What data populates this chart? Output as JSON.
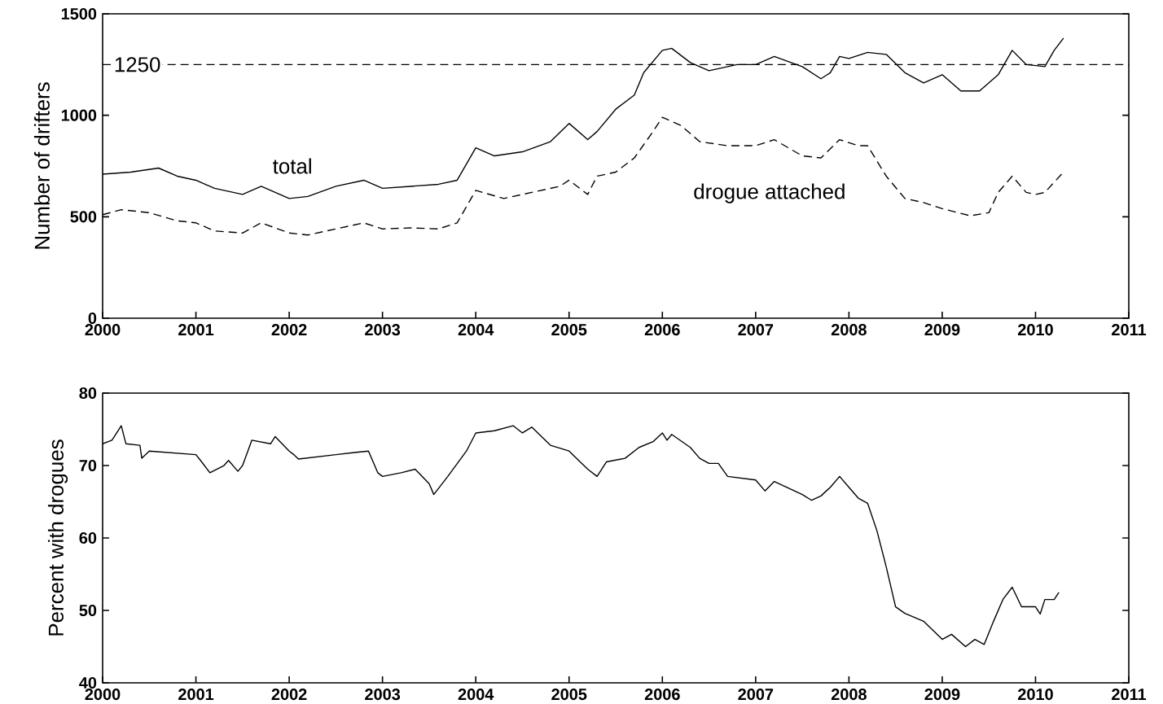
{
  "chart_data": [
    {
      "type": "line",
      "ylabel": "Number of drifters",
      "xlim": [
        2000,
        2011
      ],
      "xticks": [
        2000,
        2001,
        2002,
        2003,
        2004,
        2005,
        2006,
        2007,
        2008,
        2009,
        2010,
        2011
      ],
      "ylim": [
        0,
        1500
      ],
      "yticks": [
        0,
        500,
        1000,
        1500
      ],
      "grid": false,
      "legend": false,
      "marker": "none",
      "ref_lines": [
        {
          "axis": "y",
          "value": 1250,
          "label": "1250",
          "line_style": "dashed",
          "color": "#000000"
        }
      ],
      "series": [
        {
          "name": "total",
          "color": "#000000",
          "line_style": "solid",
          "x": [
            2000.0,
            2000.3,
            2000.6,
            2000.8,
            2001.0,
            2001.2,
            2001.5,
            2001.7,
            2002.0,
            2002.2,
            2002.5,
            2002.8,
            2003.0,
            2003.3,
            2003.6,
            2003.8,
            2004.0,
            2004.2,
            2004.5,
            2004.8,
            2005.0,
            2005.2,
            2005.3,
            2005.5,
            2005.7,
            2005.8,
            2006.0,
            2006.1,
            2006.3,
            2006.5,
            2006.8,
            2007.0,
            2007.2,
            2007.5,
            2007.7,
            2007.8,
            2007.9,
            2008.0,
            2008.2,
            2008.4,
            2008.6,
            2008.8,
            2009.0,
            2009.2,
            2009.4,
            2009.6,
            2009.75,
            2009.9,
            2010.1,
            2010.2,
            2010.3
          ],
          "values": [
            710,
            720,
            740,
            700,
            680,
            640,
            610,
            650,
            590,
            600,
            650,
            680,
            640,
            650,
            660,
            680,
            840,
            800,
            820,
            870,
            960,
            880,
            920,
            1030,
            1100,
            1210,
            1320,
            1330,
            1260,
            1220,
            1250,
            1250,
            1290,
            1240,
            1180,
            1210,
            1290,
            1280,
            1310,
            1300,
            1210,
            1160,
            1200,
            1120,
            1120,
            1200,
            1320,
            1250,
            1240,
            1320,
            1380
          ]
        },
        {
          "name": "drogue attached",
          "color": "#000000",
          "line_style": "dashed",
          "x": [
            2000.0,
            2000.2,
            2000.5,
            2000.8,
            2001.0,
            2001.2,
            2001.5,
            2001.7,
            2002.0,
            2002.2,
            2002.5,
            2002.8,
            2003.0,
            2003.3,
            2003.6,
            2003.8,
            2004.0,
            2004.3,
            2004.6,
            2004.9,
            2005.0,
            2005.2,
            2005.3,
            2005.5,
            2005.7,
            2005.9,
            2006.0,
            2006.2,
            2006.4,
            2006.7,
            2007.0,
            2007.2,
            2007.5,
            2007.7,
            2007.9,
            2008.1,
            2008.2,
            2008.4,
            2008.6,
            2008.8,
            2009.0,
            2009.3,
            2009.5,
            2009.6,
            2009.75,
            2009.9,
            2010.0,
            2010.1,
            2010.3
          ],
          "values": [
            510,
            535,
            520,
            480,
            470,
            430,
            420,
            470,
            420,
            410,
            440,
            470,
            440,
            445,
            440,
            470,
            630,
            590,
            620,
            650,
            680,
            610,
            700,
            720,
            790,
            920,
            990,
            950,
            870,
            850,
            850,
            880,
            800,
            790,
            880,
            850,
            850,
            700,
            590,
            570,
            540,
            505,
            520,
            620,
            700,
            620,
            610,
            620,
            720
          ]
        }
      ]
    },
    {
      "type": "line",
      "ylabel": "Percent with drogues",
      "xlim": [
        2000,
        2011
      ],
      "xticks": [
        2000,
        2001,
        2002,
        2003,
        2004,
        2005,
        2006,
        2007,
        2008,
        2009,
        2010,
        2011
      ],
      "ylim": [
        40,
        80
      ],
      "yticks": [
        40,
        50,
        60,
        70,
        80
      ],
      "grid": false,
      "legend": false,
      "marker": "none",
      "series": [
        {
          "color": "#000000",
          "line_style": "solid",
          "x": [
            2000.0,
            2000.1,
            2000.2,
            2000.25,
            2000.4,
            2000.42,
            2000.5,
            2001.0,
            2001.05,
            2001.15,
            2001.3,
            2001.35,
            2001.45,
            2001.5,
            2001.6,
            2001.8,
            2001.85,
            2002.0,
            2002.05,
            2002.1,
            2002.5,
            2002.7,
            2002.85,
            2002.95,
            2003.0,
            2003.2,
            2003.35,
            2003.5,
            2003.55,
            2003.7,
            2003.9,
            2004.0,
            2004.2,
            2004.4,
            2004.5,
            2004.6,
            2004.8,
            2005.0,
            2005.2,
            2005.3,
            2005.4,
            2005.6,
            2005.75,
            2005.9,
            2006.0,
            2006.05,
            2006.1,
            2006.3,
            2006.4,
            2006.5,
            2006.6,
            2006.7,
            2007.0,
            2007.1,
            2007.2,
            2007.5,
            2007.6,
            2007.7,
            2007.8,
            2007.9,
            2008.0,
            2008.1,
            2008.2,
            2008.3,
            2008.4,
            2008.5,
            2008.6,
            2008.8,
            2009.0,
            2009.1,
            2009.25,
            2009.35,
            2009.45,
            2009.55,
            2009.65,
            2009.75,
            2009.85,
            2010.0,
            2010.05,
            2010.1,
            2010.2,
            2010.25
          ],
          "values": [
            73,
            73.5,
            75.5,
            73,
            72.8,
            71,
            72,
            71.5,
            70.7,
            69,
            70,
            70.7,
            69.2,
            70,
            73.5,
            73,
            74,
            72,
            71.5,
            70.9,
            71.5,
            71.8,
            72,
            69,
            68.5,
            69,
            69.5,
            67.5,
            66,
            68.5,
            72,
            74.5,
            74.8,
            75.5,
            74.5,
            75.3,
            72.8,
            72,
            69.5,
            68.5,
            70.5,
            71,
            72.5,
            73.3,
            74.5,
            73.5,
            74.3,
            72.5,
            71,
            70.3,
            70.3,
            68.5,
            68,
            66.5,
            67.8,
            66,
            65.2,
            65.8,
            67,
            68.5,
            67,
            65.5,
            64.8,
            61,
            56,
            50.5,
            49.6,
            48.5,
            46,
            46.7,
            45,
            46,
            45.3,
            48.5,
            51.5,
            53.2,
            50.5,
            50.5,
            49.5,
            51.5,
            51.5,
            52.5
          ]
        }
      ]
    }
  ]
}
